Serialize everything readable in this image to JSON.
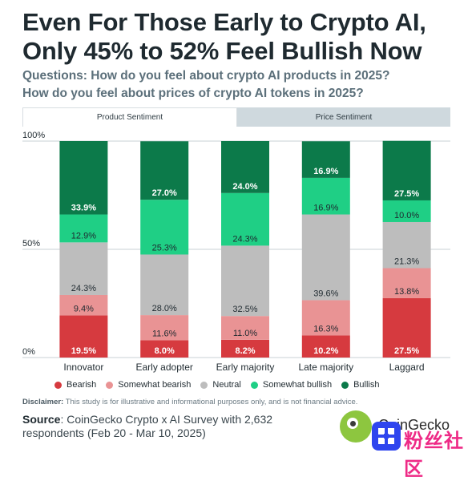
{
  "title": "Even For Those Early to Crypto AI, Only 45% to 52% Feel Bullish Now",
  "questions": [
    "Questions: How do you feel about crypto AI products in 2025?",
    "How do you feel about prices of crypto AI tokens in 2025?"
  ],
  "tabs": [
    {
      "label": "Product Sentiment",
      "active": true
    },
    {
      "label": "Price Sentiment",
      "active": false
    }
  ],
  "colors": {
    "bearish": "#d63a3f",
    "somewhat_bearish": "#e99394",
    "neutral": "#bdbdbd",
    "somewhat_bullish": "#1fcf85",
    "bullish": "#0c7a4a"
  },
  "chart_data": {
    "type": "bar",
    "stacked": true,
    "categories": [
      "Innovator",
      "Early adopter",
      "Early majority",
      "Late majority",
      "Laggard"
    ],
    "series": [
      {
        "name": "Bearish",
        "key": "bearish",
        "values": [
          19.5,
          8.0,
          8.2,
          10.2,
          27.5
        ]
      },
      {
        "name": "Somewhat bearish",
        "key": "somewhat_bearish",
        "values": [
          9.4,
          11.6,
          11.0,
          16.3,
          13.8
        ]
      },
      {
        "name": "Neutral",
        "key": "neutral",
        "values": [
          24.3,
          28.0,
          32.5,
          39.6,
          21.3
        ]
      },
      {
        "name": "Somewhat bullish",
        "key": "somewhat_bullish",
        "values": [
          12.9,
          25.3,
          24.3,
          16.9,
          10.0
        ]
      },
      {
        "name": "Bullish",
        "key": "bullish",
        "values": [
          33.9,
          27.0,
          24.0,
          16.9,
          27.5
        ]
      }
    ],
    "labels": [
      [
        "19.5%",
        "9.4%",
        "24.3%",
        "12.9%",
        "33.9%"
      ],
      [
        "8.0%",
        "11.6%",
        "28.0%",
        "25.3%",
        "27.0%"
      ],
      [
        "8.2%",
        "11.0%",
        "32.5%",
        "24.3%",
        "24.0%"
      ],
      [
        "10.2%",
        "16.3%",
        "39.6%",
        "16.9%",
        "16.9%"
      ],
      [
        "27.5%",
        "13.8%",
        "21.3%",
        "10.0%",
        "27.5%"
      ]
    ],
    "yticks": [
      "0%",
      "50%",
      "100%"
    ],
    "ylim": [
      0,
      100
    ],
    "grid": true,
    "legend_position": "bottom"
  },
  "disclaimer": {
    "label": "Disclaimer:",
    "text": " This study is for illustrative and informational purposes only, and is not financial advice."
  },
  "source": {
    "label": "Source",
    "text": ": CoinGecko Crypto x AI Survey with 2,632 respondents (Feb 20 - Mar 10, 2025)"
  },
  "logo": {
    "text": "CoinGecko"
  },
  "watermark": {
    "text": "粉丝社区"
  }
}
